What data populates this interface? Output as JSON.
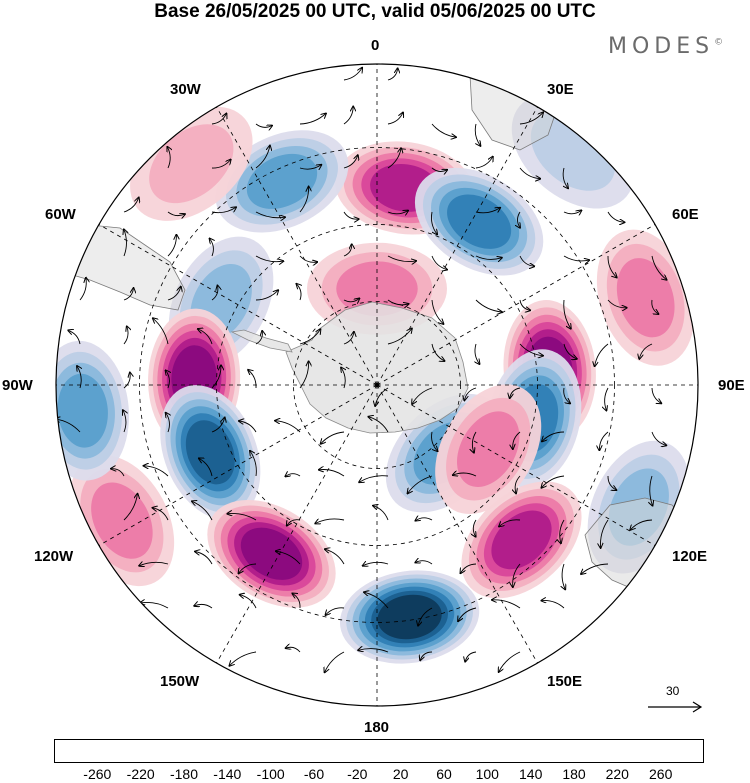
{
  "title": "Base 26/05/2025 00 UTC, valid 05/06/2025 00 UTC",
  "brand": "MODES",
  "brand_mark": "©",
  "longitude_labels": {
    "lon_0": "0",
    "lon_30e": "30E",
    "lon_60e": "60E",
    "lon_90e": "90E",
    "lon_120e": "120E",
    "lon_150e": "150E",
    "lon_180": "180",
    "lon_150w": "150W",
    "lon_120w": "120W",
    "lon_90w": "90W",
    "lon_60w": "60W",
    "lon_30w": "30W"
  },
  "wind_scale_label": "30",
  "colorbar": {
    "ticks": [
      "-260",
      "-220",
      "-180",
      "-140",
      "-100",
      "-60",
      "-20",
      "20",
      "60",
      "100",
      "140",
      "180",
      "220",
      "260"
    ],
    "colors": [
      "#0e3a5c",
      "#1b5f8f",
      "#2f7fb5",
      "#5a9fcc",
      "#8ab8dc",
      "#bccde6",
      "#dcdcec",
      "#ffffff",
      "#f7d3d8",
      "#f3aec0",
      "#ec7aa8",
      "#d9479a",
      "#b01c8a",
      "#8a0a7e",
      "#5a0a7a"
    ]
  },
  "anomaly_centers": [
    {
      "lon": 8,
      "dist": 0.62,
      "value": 180
    },
    {
      "lon": -25,
      "dist": 0.7,
      "value": -120
    },
    {
      "lon": 32,
      "dist": 0.6,
      "value": -160
    },
    {
      "lon": -62,
      "dist": 0.55,
      "value": -110
    },
    {
      "lon": -88,
      "dist": 0.57,
      "value": 220
    },
    {
      "lon": 85,
      "dist": 0.54,
      "value": 200
    },
    {
      "lon": 102,
      "dist": 0.5,
      "value": -180
    },
    {
      "lon": -112,
      "dist": 0.56,
      "value": -220
    },
    {
      "lon": -148,
      "dist": 0.62,
      "value": 230
    },
    {
      "lon": 172,
      "dist": 0.73,
      "value": -240
    },
    {
      "lon": 137,
      "dist": 0.66,
      "value": 190
    },
    {
      "lon": 135,
      "dist": 0.3,
      "value": -120
    },
    {
      "lon": 120,
      "dist": 0.4,
      "value": 100
    },
    {
      "lon": -118,
      "dist": 0.9,
      "value": 80
    },
    {
      "lon": -95,
      "dist": 0.92,
      "value": -140
    },
    {
      "lon": 72,
      "dist": 0.88,
      "value": 80
    },
    {
      "lon": 115,
      "dist": 0.9,
      "value": -80
    },
    {
      "lon": 40,
      "dist": 0.95,
      "value": -60
    },
    {
      "lon": -40,
      "dist": 0.9,
      "value": 60
    },
    {
      "lon": 0,
      "dist": 0.3,
      "value": 80
    }
  ]
}
